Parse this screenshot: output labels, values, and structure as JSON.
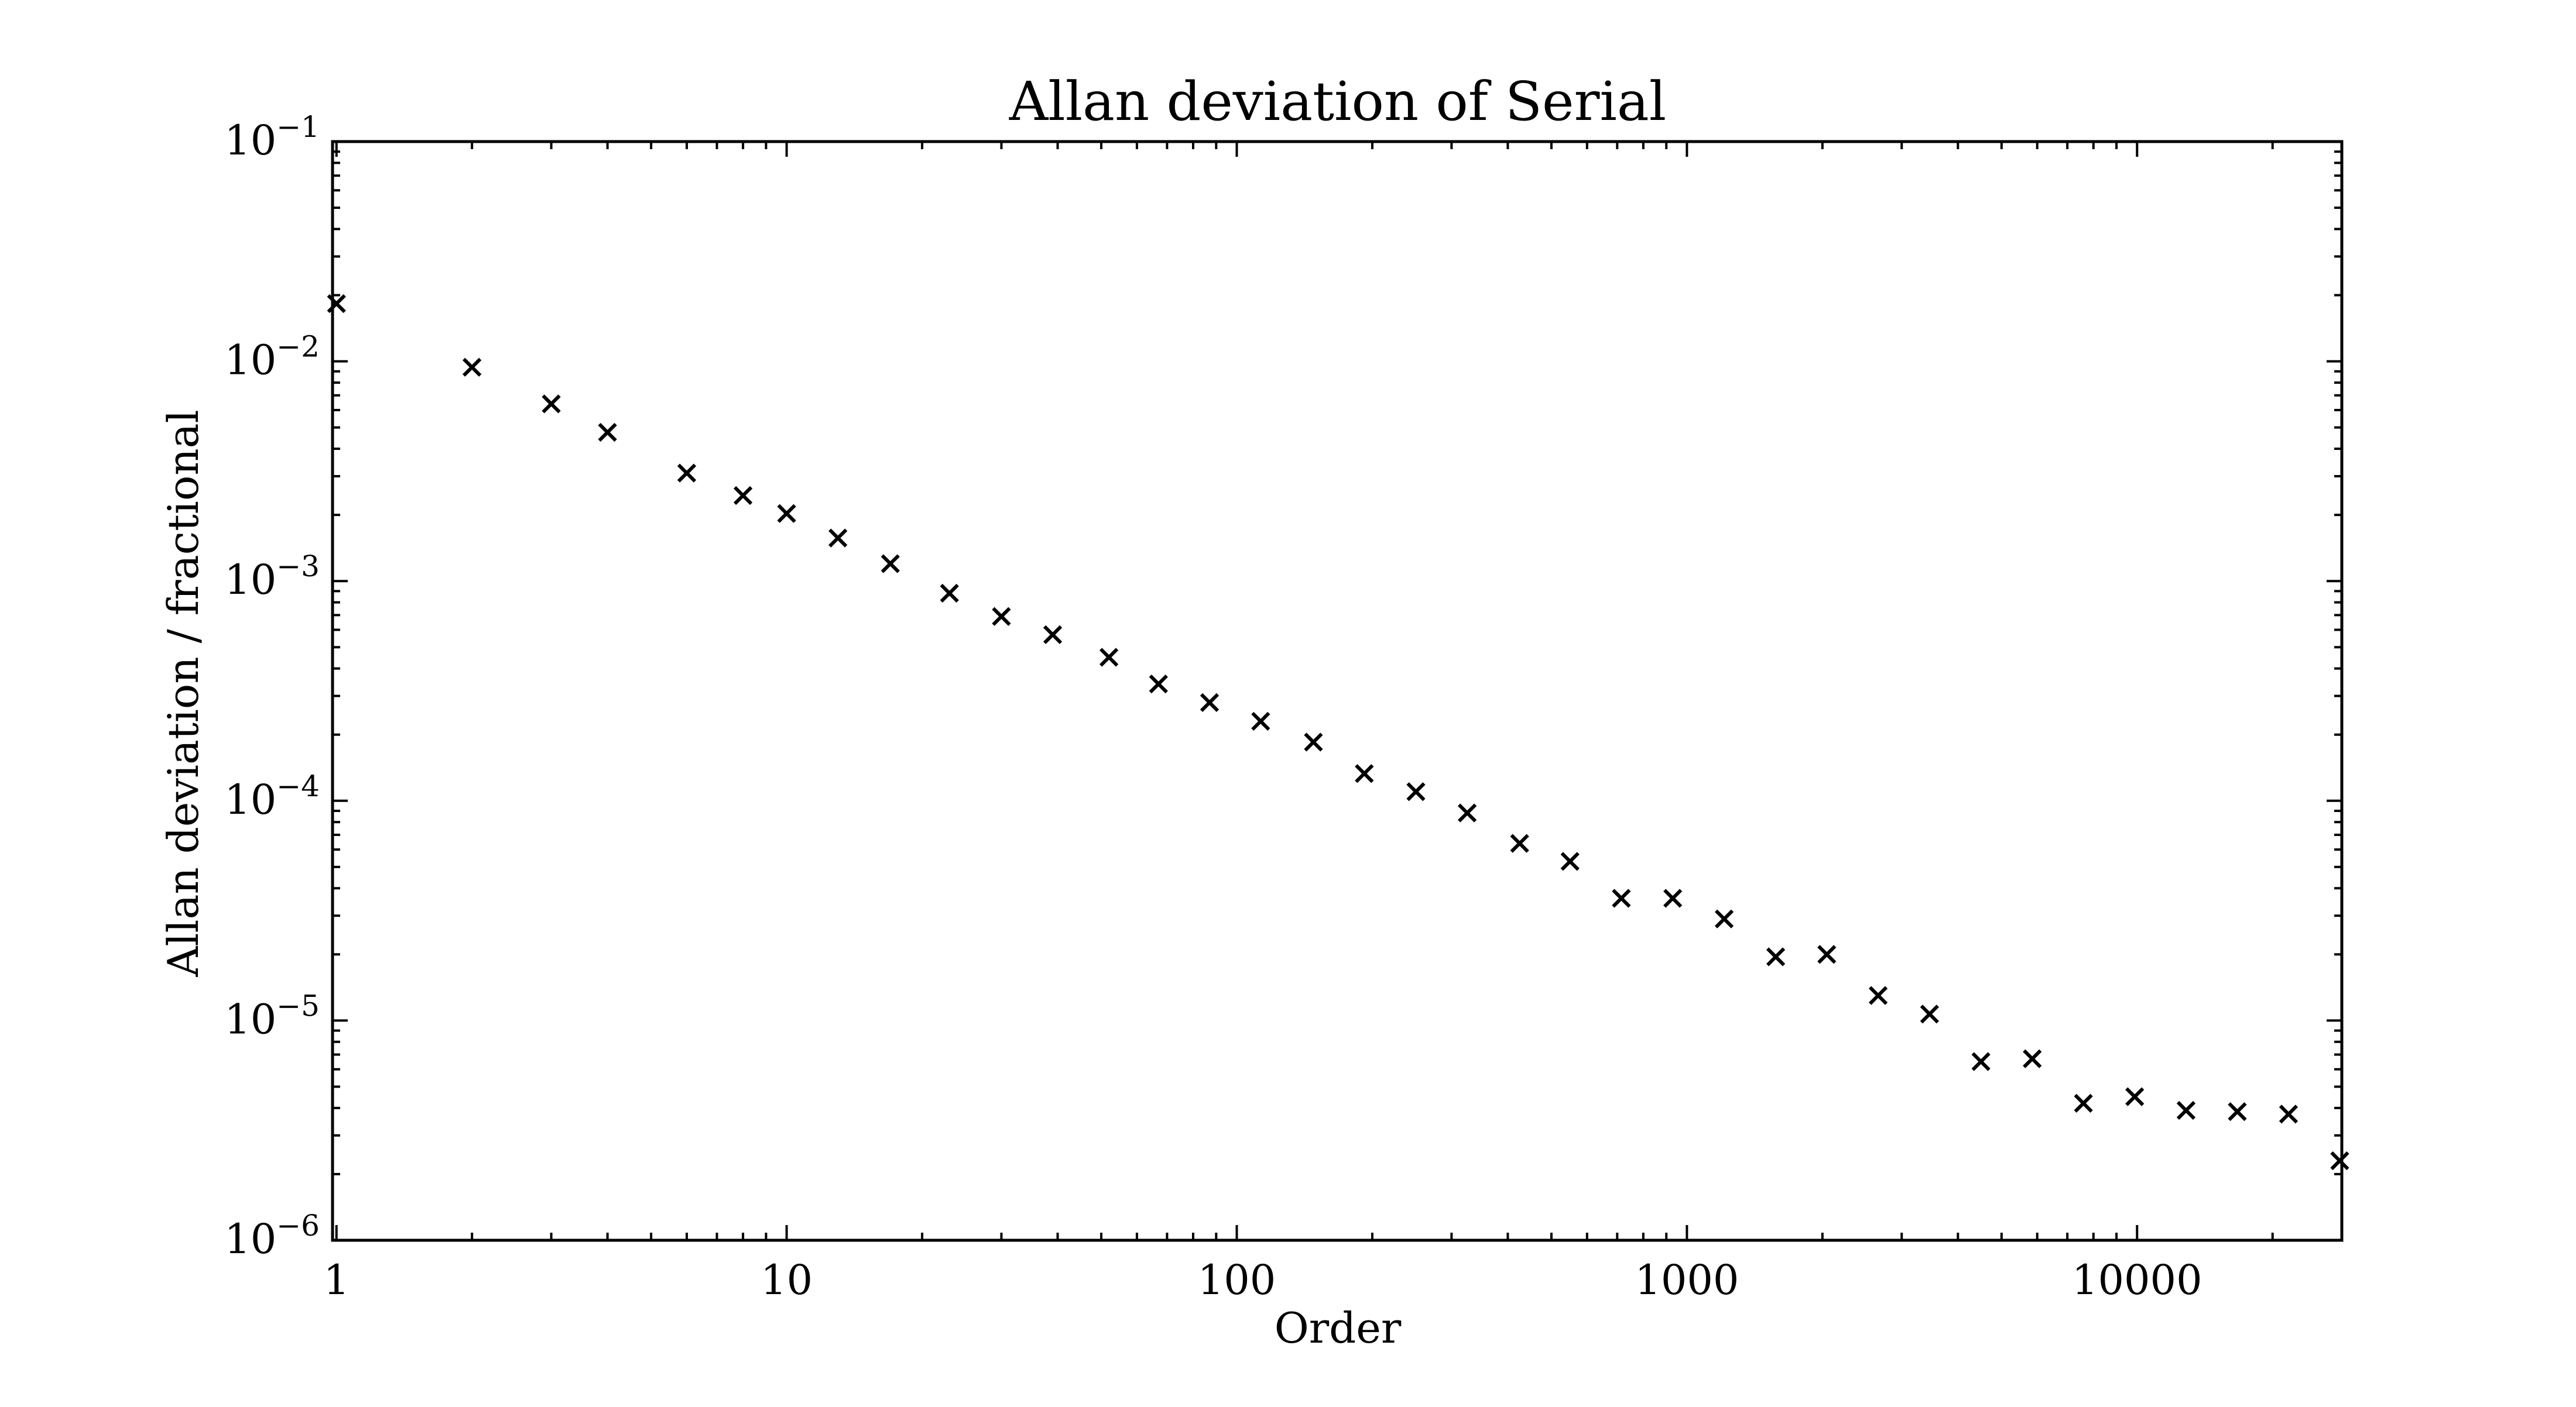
{
  "chart_data": {
    "type": "scatter",
    "title": "Allan deviation of Serial",
    "xlabel": "Order",
    "ylabel": "Allan deviation / fractional",
    "xscale": "log",
    "yscale": "log",
    "xlim": [
      0.98,
      28500
    ],
    "ylim": [
      1e-06,
      0.1
    ],
    "xtick_labels": [
      "1",
      "10",
      "100",
      "1000",
      "10000"
    ],
    "xtick_values": [
      1,
      10,
      100,
      1000,
      10000
    ],
    "ytick_values": [
      0.1,
      0.01,
      0.001,
      0.0001,
      1e-05,
      1e-06
    ],
    "ytick_labels": [
      {
        "base": "10",
        "exp": "−1"
      },
      {
        "base": "10",
        "exp": "−2"
      },
      {
        "base": "10",
        "exp": "−3"
      },
      {
        "base": "10",
        "exp": "−4"
      },
      {
        "base": "10",
        "exp": "−5"
      },
      {
        "base": "10",
        "exp": "−6"
      }
    ],
    "marker": "x",
    "marker_color": "#000000",
    "grid": false,
    "legend": "none",
    "series": [
      {
        "x": [
          1,
          2,
          3,
          4,
          6,
          8,
          10,
          13,
          17,
          23,
          30,
          39,
          52,
          67,
          87,
          113,
          148,
          192,
          250,
          325,
          425,
          550,
          715,
          930,
          1210,
          1575,
          2045,
          2660,
          3460,
          4500,
          5850,
          7600,
          9880,
          12850,
          16700,
          21700,
          28200
        ],
        "y": [
          0.0183,
          0.0094,
          0.0064,
          0.00475,
          0.0031,
          0.00245,
          0.00203,
          0.00157,
          0.0012,
          0.00088,
          0.00069,
          0.00057,
          0.00045,
          0.00034,
          0.00028,
          0.00023,
          0.000185,
          0.000133,
          0.00011,
          8.8e-05,
          6.4e-05,
          5.3e-05,
          3.6e-05,
          3.6e-05,
          2.9e-05,
          1.95e-05,
          2e-05,
          1.3e-05,
          1.07e-05,
          6.5e-06,
          6.7e-06,
          4.2e-06,
          4.5e-06,
          3.9e-06,
          3.85e-06,
          3.75e-06,
          2.3e-06
        ]
      }
    ]
  }
}
